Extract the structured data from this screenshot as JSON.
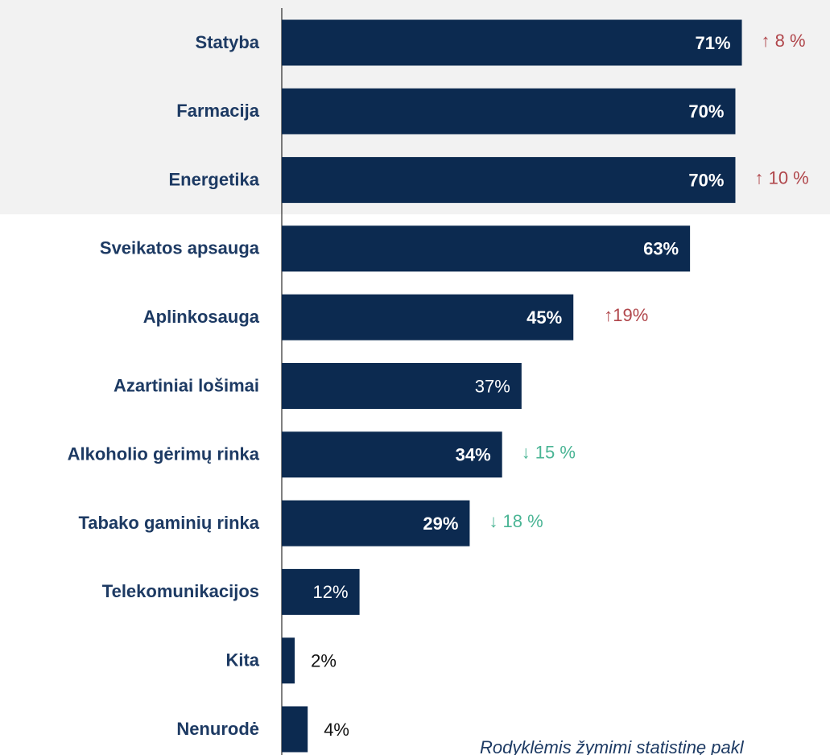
{
  "chart_data": {
    "type": "barh",
    "categories": [
      "Statyba",
      "Farmacija",
      "Energetika",
      "Sveikatos apsauga",
      "Aplinkosauga",
      "Azartiniai lošimai",
      "Alkoholio gėrimų rinka",
      "Tabako gaminių rinka",
      "Telekomunikacijos",
      "Kita",
      "Nenurodė"
    ],
    "values": [
      71,
      70,
      70,
      63,
      45,
      37,
      34,
      29,
      12,
      2,
      4
    ],
    "value_labels": [
      "71%",
      "70%",
      "70%",
      "63%",
      "45%",
      "37%",
      "34%",
      "29%",
      "12%",
      "2%",
      "4%"
    ],
    "label_bold": [
      true,
      true,
      true,
      true,
      true,
      false,
      true,
      true,
      false,
      false,
      false
    ],
    "color": "#0c2a50",
    "xlim": [
      0,
      84.6
    ],
    "changes": [
      "↑ 8 %",
      null,
      "↑ 10 %",
      null,
      "↑19%",
      null,
      "↓ 15 %",
      "↓ 18 %",
      null,
      null,
      null
    ],
    "change_colors": {
      "up": "#b0464b",
      "down": "#4bb595"
    },
    "highlight_rows": 3,
    "footnote": "Rodyklėmis žymimi statistinę pakl"
  }
}
